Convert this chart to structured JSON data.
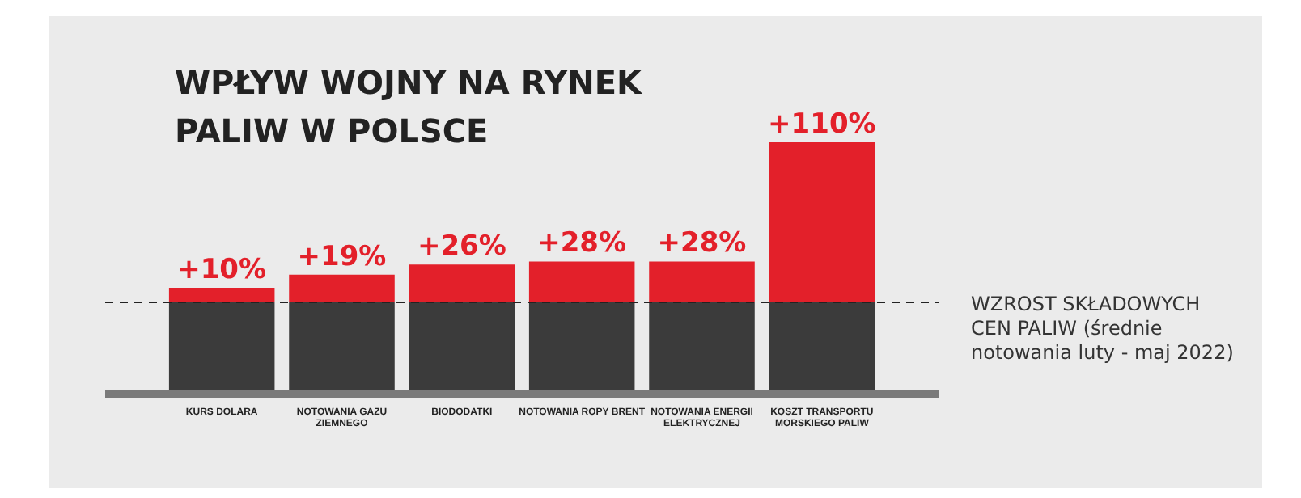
{
  "chart_data": {
    "type": "bar",
    "title": "WPŁYW WOJNY NA RYNEK PALIW W POLSCE",
    "categories": [
      "KURS DOLARA",
      "NOTOWANIA GAZU ZIEMNEGO",
      "BIODODATKI",
      "NOTOWANIA ROPY BRENT",
      "NOTOWANIA ENERGII ELEKTRYCZNEJ",
      "KOSZT TRANSPORTU MORSKIEGO PALIW"
    ],
    "stacked": true,
    "ylim": [
      0,
      170
    ],
    "tick_labels": "x",
    "grid": false,
    "legend": false,
    "series": [
      {
        "color": "#3b3b3b",
        "values": [
          60,
          60,
          60,
          60,
          60,
          60
        ]
      },
      {
        "color": "#e3202a",
        "values": [
          10,
          19,
          26,
          28,
          28,
          110
        ],
        "value_labels": [
          "+10%",
          "+19%",
          "+26%",
          "+28%",
          "+28%",
          "+110%"
        ]
      }
    ],
    "ref_lines": [
      {
        "axis": "y",
        "value": 60,
        "label": "WZROST SKŁADOWYCH CEN PALIW (średnie notowania luty - maj 2022)",
        "line_style": "dashed",
        "color": "#222222"
      }
    ]
  }
}
